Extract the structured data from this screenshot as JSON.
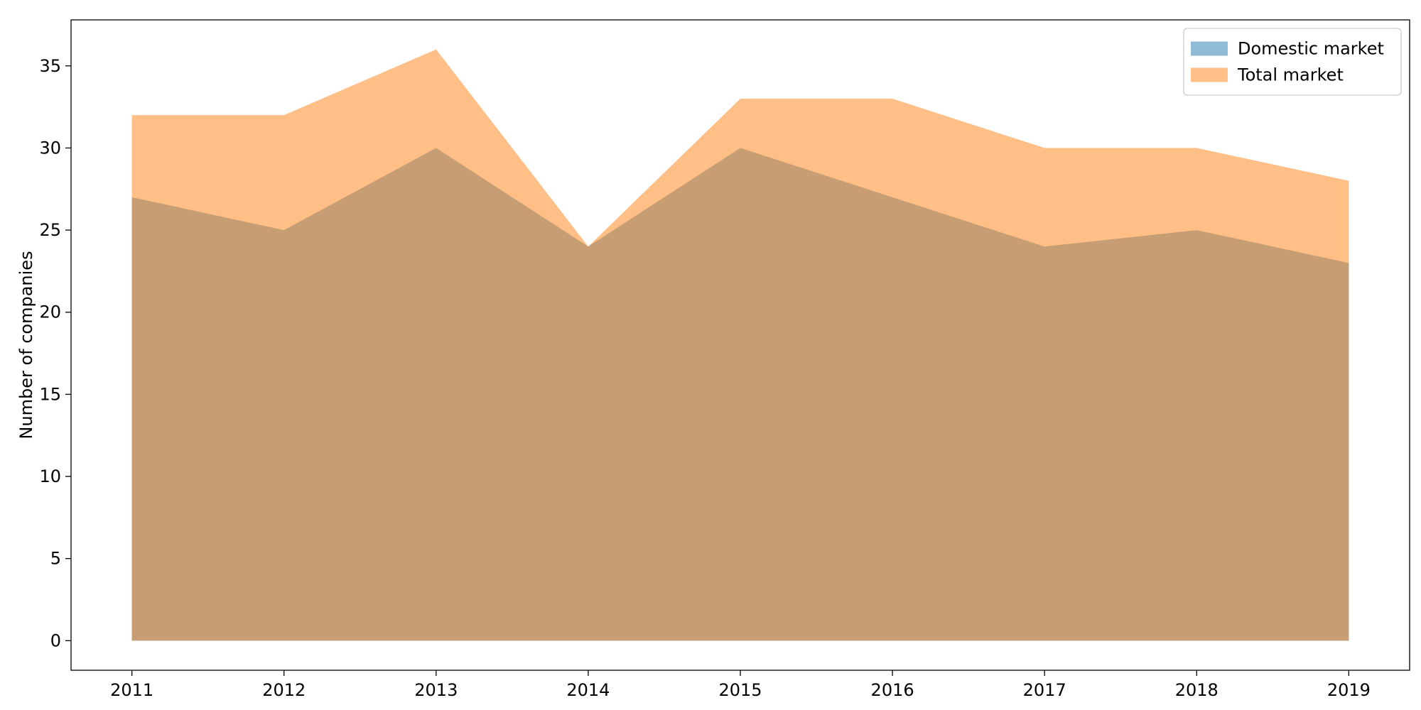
{
  "chart_data": {
    "type": "area",
    "title": "",
    "xlabel": "",
    "ylabel": "Number of companies",
    "x": [
      2011,
      2012,
      2013,
      2014,
      2015,
      2016,
      2017,
      2018,
      2019
    ],
    "series": [
      {
        "name": "Domestic market",
        "values": [
          27,
          25,
          30,
          24,
          30,
          27,
          24,
          25,
          23
        ],
        "color": "#1f77b4",
        "alpha": 0.5
      },
      {
        "name": "Total market",
        "values": [
          32,
          32,
          36,
          24,
          33,
          33,
          30,
          30,
          28
        ],
        "color": "#ff7f0e",
        "alpha": 0.5
      }
    ],
    "xlim": [
      2010.6,
      2019.4
    ],
    "ylim": [
      -1.8,
      37.8
    ],
    "yticks": [
      0,
      5,
      10,
      15,
      20,
      25,
      30,
      35
    ],
    "xticks": [
      2011,
      2012,
      2013,
      2014,
      2015,
      2016,
      2017,
      2018,
      2019
    ],
    "grid": false,
    "legend_position": "top-right"
  }
}
